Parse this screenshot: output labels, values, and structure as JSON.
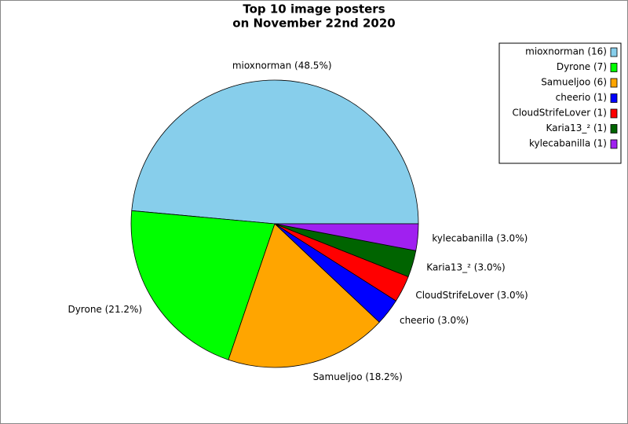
{
  "chart_data": {
    "type": "pie",
    "title": [
      "Top 10 image posters",
      "on November 22nd 2020"
    ],
    "values": [
      48.5,
      21.2,
      18.2,
      3.0,
      3.0,
      3.0,
      3.0
    ],
    "value_labels": [
      "mioxnorman (48.5%)",
      "Dyrone (21.2%)",
      "Samueljoo (18.2%)",
      "cheerio (3.0%)",
      "CloudStrifeLover (3.0%)",
      "Karia13_² (3.0%)",
      "kylecabanilla (3.0%)"
    ],
    "colors": [
      "#87ceeb",
      "#00ff00",
      "#ffa500",
      "#0000ff",
      "#ff0000",
      "#006400",
      "#a020f0"
    ],
    "legend": [
      "mioxnorman (16)",
      "Dyrone (7)",
      "Samueljoo (6)",
      "cheerio (1)",
      "CloudStrifeLover (1)",
      "Karia13_² (1)",
      "kylecabanilla (1)"
    ],
    "legend_position": "upper right"
  }
}
